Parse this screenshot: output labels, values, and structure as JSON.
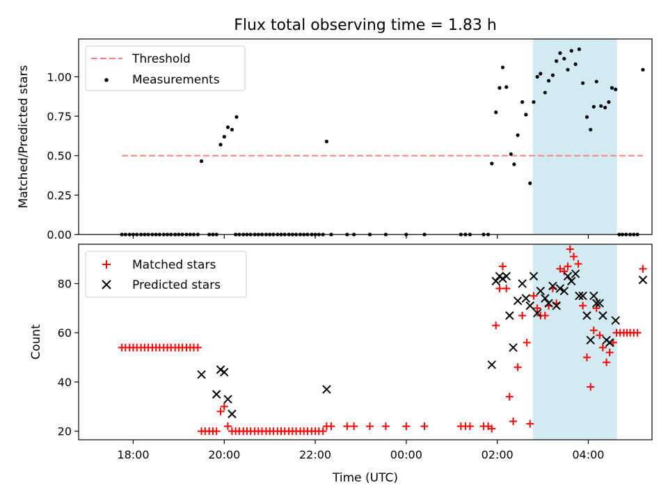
{
  "chart_data": [
    {
      "type": "scatter",
      "title": "Flux total observing time = 1.83 h",
      "xlabel": "",
      "ylabel": "Matched/Predicted stars",
      "ylim": [
        0,
        1.24
      ],
      "yticks": [
        "0.00",
        "0.25",
        "0.50",
        "0.75",
        "1.00"
      ],
      "ytick_values": [
        0,
        0.25,
        0.5,
        0.75,
        1.0
      ],
      "legend_position": "top-left",
      "threshold": {
        "name": "Threshold",
        "value": 0.5,
        "x_start": 17.75,
        "x_end": 29.2,
        "color": "#ff7f7f"
      },
      "series": [
        {
          "name": "Measurements",
          "color": "#000000",
          "points": [
            [
              17.75,
              0
            ],
            [
              17.83,
              0
            ],
            [
              17.92,
              0
            ],
            [
              18.0,
              0
            ],
            [
              18.08,
              0
            ],
            [
              18.17,
              0
            ],
            [
              18.25,
              0
            ],
            [
              18.33,
              0
            ],
            [
              18.42,
              0
            ],
            [
              18.5,
              0
            ],
            [
              18.58,
              0
            ],
            [
              18.67,
              0
            ],
            [
              18.75,
              0
            ],
            [
              18.83,
              0
            ],
            [
              18.92,
              0
            ],
            [
              19.0,
              0
            ],
            [
              19.08,
              0
            ],
            [
              19.17,
              0
            ],
            [
              19.25,
              0
            ],
            [
              19.33,
              0
            ],
            [
              19.42,
              0
            ],
            [
              19.5,
              0.465
            ],
            [
              19.67,
              0
            ],
            [
              19.75,
              0
            ],
            [
              19.83,
              0
            ],
            [
              19.92,
              0.57
            ],
            [
              20.0,
              0.62
            ],
            [
              20.08,
              0.68
            ],
            [
              20.17,
              0.665
            ],
            [
              20.27,
              0.745
            ],
            [
              20.25,
              0
            ],
            [
              20.33,
              0
            ],
            [
              20.42,
              0
            ],
            [
              20.5,
              0
            ],
            [
              20.58,
              0
            ],
            [
              20.67,
              0
            ],
            [
              20.75,
              0
            ],
            [
              20.83,
              0
            ],
            [
              20.92,
              0
            ],
            [
              21.0,
              0
            ],
            [
              21.08,
              0
            ],
            [
              21.17,
              0
            ],
            [
              21.25,
              0
            ],
            [
              21.33,
              0
            ],
            [
              21.42,
              0
            ],
            [
              21.5,
              0
            ],
            [
              21.58,
              0
            ],
            [
              21.67,
              0
            ],
            [
              21.75,
              0
            ],
            [
              21.83,
              0
            ],
            [
              21.92,
              0
            ],
            [
              22.0,
              0
            ],
            [
              22.08,
              0
            ],
            [
              22.17,
              0
            ],
            [
              22.25,
              0.59
            ],
            [
              22.35,
              0
            ],
            [
              22.7,
              0
            ],
            [
              22.85,
              0
            ],
            [
              23.2,
              0
            ],
            [
              23.55,
              0
            ],
            [
              24.0,
              0
            ],
            [
              24.4,
              0
            ],
            [
              25.2,
              0
            ],
            [
              25.3,
              0
            ],
            [
              25.4,
              0
            ],
            [
              25.7,
              0
            ],
            [
              25.8,
              0
            ],
            [
              25.88,
              0.45
            ],
            [
              25.97,
              0.775
            ],
            [
              26.05,
              0.93
            ],
            [
              26.12,
              1.06
            ],
            [
              26.2,
              0.935
            ],
            [
              26.3,
              0.51
            ],
            [
              26.37,
              0.445
            ],
            [
              26.45,
              0.63
            ],
            [
              26.55,
              0.84
            ],
            [
              26.63,
              0.76
            ],
            [
              26.72,
              0.325
            ],
            [
              26.8,
              0.84
            ],
            [
              26.88,
              1.0
            ],
            [
              26.95,
              1.02
            ],
            [
              27.05,
              0.9
            ],
            [
              27.13,
              0.975
            ],
            [
              27.22,
              1.01
            ],
            [
              27.3,
              1.1
            ],
            [
              27.38,
              1.15
            ],
            [
              27.47,
              1.115
            ],
            [
              27.55,
              1.045
            ],
            [
              27.63,
              1.165
            ],
            [
              27.72,
              1.08
            ],
            [
              27.8,
              1.175
            ],
            [
              27.88,
              0.96
            ],
            [
              27.97,
              0.745
            ],
            [
              28.05,
              0.665
            ],
            [
              28.12,
              0.81
            ],
            [
              28.18,
              0.97
            ],
            [
              28.28,
              0.815
            ],
            [
              28.37,
              0.805
            ],
            [
              28.45,
              0.84
            ],
            [
              28.52,
              0.93
            ],
            [
              28.6,
              0.92
            ],
            [
              28.68,
              0
            ],
            [
              28.75,
              0
            ],
            [
              28.83,
              0
            ],
            [
              28.92,
              0
            ],
            [
              29.0,
              0
            ],
            [
              29.08,
              0
            ],
            [
              29.2,
              1.045
            ]
          ]
        }
      ],
      "shaded_region": {
        "x_start": 26.78,
        "x_end": 28.63,
        "color": "#add8e6"
      }
    },
    {
      "type": "scatter",
      "title": "",
      "xlabel": "Time (UTC)",
      "ylabel": "Count",
      "ylim": [
        16.5,
        96
      ],
      "yticks": [
        "20",
        "40",
        "60",
        "80"
      ],
      "ytick_values": [
        20,
        40,
        60,
        80
      ],
      "xlim": [
        16.8,
        29.4
      ],
      "xticks": [
        "18:00",
        "20:00",
        "22:00",
        "00:00",
        "02:00",
        "04:00"
      ],
      "xtick_values": [
        18,
        20,
        22,
        24,
        26,
        28
      ],
      "legend_position": "top-left",
      "series": [
        {
          "name": "Matched stars",
          "color": "#ff0000",
          "marker": "plus",
          "points": [
            [
              17.75,
              54
            ],
            [
              17.83,
              54
            ],
            [
              17.92,
              54
            ],
            [
              18.0,
              54
            ],
            [
              18.08,
              54
            ],
            [
              18.17,
              54
            ],
            [
              18.25,
              54
            ],
            [
              18.33,
              54
            ],
            [
              18.42,
              54
            ],
            [
              18.5,
              54
            ],
            [
              18.58,
              54
            ],
            [
              18.67,
              54
            ],
            [
              18.75,
              54
            ],
            [
              18.83,
              54
            ],
            [
              18.92,
              54
            ],
            [
              19.0,
              54
            ],
            [
              19.08,
              54
            ],
            [
              19.17,
              54
            ],
            [
              19.25,
              54
            ],
            [
              19.33,
              54
            ],
            [
              19.42,
              54
            ],
            [
              19.5,
              20
            ],
            [
              19.58,
              20
            ],
            [
              19.67,
              20
            ],
            [
              19.75,
              20
            ],
            [
              19.83,
              20
            ],
            [
              19.92,
              28
            ],
            [
              20.0,
              30
            ],
            [
              20.08,
              22
            ],
            [
              20.17,
              20
            ],
            [
              20.25,
              20
            ],
            [
              20.33,
              20
            ],
            [
              20.42,
              20
            ],
            [
              20.5,
              20
            ],
            [
              20.58,
              20
            ],
            [
              20.67,
              20
            ],
            [
              20.75,
              20
            ],
            [
              20.83,
              20
            ],
            [
              20.92,
              20
            ],
            [
              21.0,
              20
            ],
            [
              21.08,
              20
            ],
            [
              21.17,
              20
            ],
            [
              21.25,
              20
            ],
            [
              21.33,
              20
            ],
            [
              21.42,
              20
            ],
            [
              21.5,
              20
            ],
            [
              21.58,
              20
            ],
            [
              21.67,
              20
            ],
            [
              21.75,
              20
            ],
            [
              21.83,
              20
            ],
            [
              21.92,
              20
            ],
            [
              22.0,
              20
            ],
            [
              22.08,
              20
            ],
            [
              22.17,
              20
            ],
            [
              22.25,
              22
            ],
            [
              22.35,
              22
            ],
            [
              22.7,
              22
            ],
            [
              22.85,
              22
            ],
            [
              23.2,
              22
            ],
            [
              23.55,
              22
            ],
            [
              24.0,
              22
            ],
            [
              24.4,
              22
            ],
            [
              25.2,
              22
            ],
            [
              25.3,
              22
            ],
            [
              25.4,
              22
            ],
            [
              25.7,
              22
            ],
            [
              25.8,
              22
            ],
            [
              25.88,
              21
            ],
            [
              25.97,
              63
            ],
            [
              26.05,
              78
            ],
            [
              26.12,
              87
            ],
            [
              26.2,
              78
            ],
            [
              26.27,
              34
            ],
            [
              26.35,
              24
            ],
            [
              26.45,
              46
            ],
            [
              26.55,
              67
            ],
            [
              26.65,
              56
            ],
            [
              26.72,
              23
            ],
            [
              26.8,
              75
            ],
            [
              26.88,
              70
            ],
            [
              26.95,
              67
            ],
            [
              27.05,
              67
            ],
            [
              27.13,
              71
            ],
            [
              27.22,
              78
            ],
            [
              27.3,
              72
            ],
            [
              27.38,
              86
            ],
            [
              27.47,
              85
            ],
            [
              27.55,
              87
            ],
            [
              27.6,
              94
            ],
            [
              27.68,
              91
            ],
            [
              27.78,
              88
            ],
            [
              27.88,
              71
            ],
            [
              27.97,
              50
            ],
            [
              28.05,
              38
            ],
            [
              28.12,
              61
            ],
            [
              28.18,
              70
            ],
            [
              28.25,
              59
            ],
            [
              28.32,
              54
            ],
            [
              28.4,
              48
            ],
            [
              28.47,
              52
            ],
            [
              28.55,
              56
            ],
            [
              28.62,
              60
            ],
            [
              28.7,
              60
            ],
            [
              28.78,
              60
            ],
            [
              28.85,
              60
            ],
            [
              28.92,
              60
            ],
            [
              29.0,
              60
            ],
            [
              29.08,
              60
            ],
            [
              29.2,
              86
            ]
          ]
        },
        {
          "name": "Predicted stars",
          "color": "#000000",
          "marker": "x",
          "points": [
            [
              19.5,
              43
            ],
            [
              19.83,
              35
            ],
            [
              19.92,
              45
            ],
            [
              20.0,
              44
            ],
            [
              20.08,
              33
            ],
            [
              20.17,
              27
            ],
            [
              22.25,
              37
            ],
            [
              25.88,
              47
            ],
            [
              25.97,
              81
            ],
            [
              26.05,
              83
            ],
            [
              26.12,
              82
            ],
            [
              26.2,
              83
            ],
            [
              26.27,
              67
            ],
            [
              26.35,
              54
            ],
            [
              26.45,
              73
            ],
            [
              26.55,
              80
            ],
            [
              26.63,
              74
            ],
            [
              26.72,
              71
            ],
            [
              26.8,
              83
            ],
            [
              26.88,
              68
            ],
            [
              26.95,
              77
            ],
            [
              27.05,
              74
            ],
            [
              27.13,
              72
            ],
            [
              27.22,
              79
            ],
            [
              27.3,
              71
            ],
            [
              27.38,
              78
            ],
            [
              27.47,
              77
            ],
            [
              27.55,
              83
            ],
            [
              27.63,
              81
            ],
            [
              27.72,
              84
            ],
            [
              27.8,
              75
            ],
            [
              27.88,
              75
            ],
            [
              27.97,
              67
            ],
            [
              28.05,
              57
            ],
            [
              28.12,
              75
            ],
            [
              28.18,
              72
            ],
            [
              28.25,
              72
            ],
            [
              28.32,
              67
            ],
            [
              28.4,
              57
            ],
            [
              28.47,
              56
            ],
            [
              28.6,
              65
            ],
            [
              29.2,
              81.5
            ]
          ]
        }
      ],
      "shaded_region": {
        "x_start": 26.78,
        "x_end": 28.63,
        "color": "#add8e6"
      }
    }
  ]
}
